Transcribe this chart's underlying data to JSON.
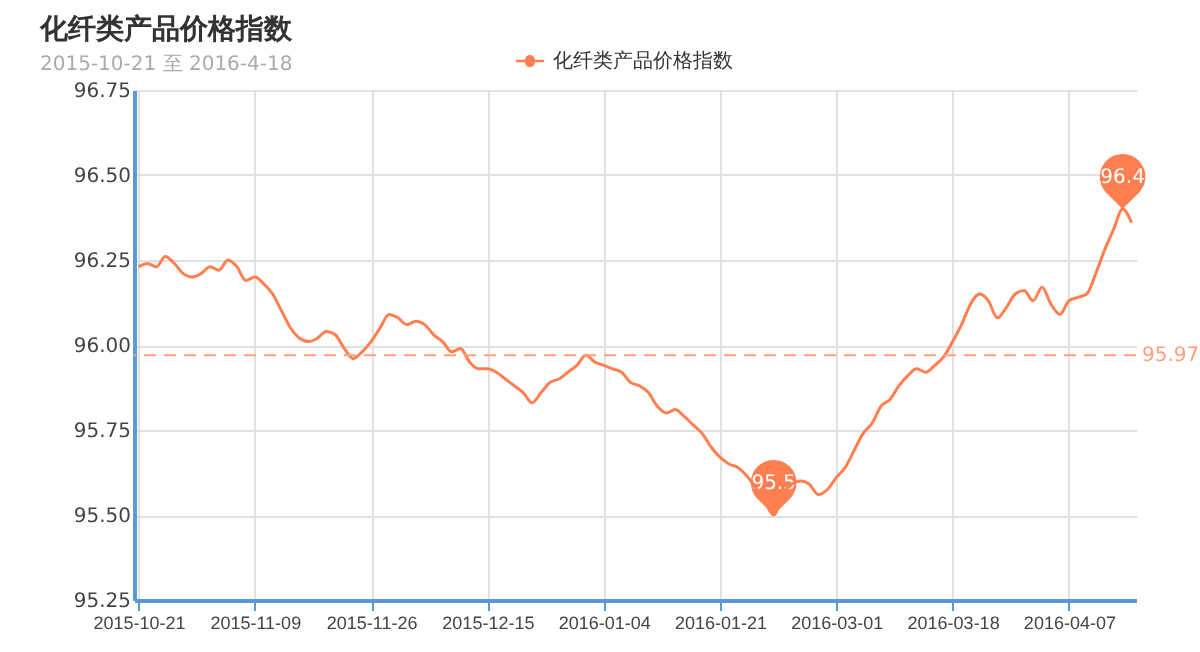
{
  "chart_data": {
    "type": "line",
    "title": "化纤类产品价格指数",
    "subtitle": "2015-10-21 至 2016-4-18",
    "categories": [
      "2015-10-21",
      null,
      null,
      null,
      null,
      null,
      null,
      null,
      null,
      null,
      null,
      null,
      null,
      "2015-11-09",
      null,
      null,
      null,
      null,
      null,
      null,
      null,
      null,
      null,
      null,
      null,
      null,
      "2015-11-26",
      null,
      null,
      null,
      null,
      null,
      null,
      null,
      null,
      null,
      null,
      null,
      null,
      "2015-12-15",
      null,
      null,
      null,
      null,
      null,
      null,
      null,
      null,
      null,
      null,
      null,
      null,
      "2016-01-04",
      null,
      null,
      null,
      null,
      null,
      null,
      null,
      null,
      null,
      null,
      null,
      null,
      "2016-01-21",
      null,
      null,
      null,
      null,
      null,
      null,
      null,
      null,
      null,
      null,
      null,
      null,
      "2016-03-01",
      null,
      null,
      null,
      null,
      null,
      null,
      null,
      null,
      null,
      null,
      null,
      null,
      "2016-03-18",
      null,
      null,
      null,
      null,
      null,
      null,
      null,
      null,
      null,
      null,
      null,
      null,
      "2016-04-07",
      null,
      null,
      null,
      null,
      null,
      null,
      null
    ],
    "series": [
      {
        "name": "化纤类产品价格指数",
        "color": "#ff7f50",
        "values": [
          96.23,
          96.24,
          96.23,
          96.26,
          96.24,
          96.21,
          96.2,
          96.21,
          96.23,
          96.22,
          96.25,
          96.23,
          96.19,
          96.2,
          96.18,
          96.15,
          96.1,
          96.05,
          96.02,
          96.01,
          96.02,
          96.04,
          96.03,
          95.99,
          95.96,
          95.98,
          96.01,
          96.05,
          96.09,
          96.08,
          96.06,
          96.07,
          96.06,
          96.03,
          96.01,
          95.98,
          95.99,
          95.95,
          95.93,
          95.93,
          95.92,
          95.9,
          95.88,
          95.86,
          95.83,
          95.86,
          95.89,
          95.9,
          95.92,
          95.94,
          95.97,
          95.95,
          95.94,
          95.93,
          95.92,
          95.89,
          95.88,
          95.86,
          95.82,
          95.8,
          95.81,
          95.79,
          95.765,
          95.74,
          95.7,
          95.67,
          95.65,
          95.64,
          95.615,
          95.58,
          95.54,
          95.5,
          95.56,
          95.59,
          95.6,
          95.59,
          95.56,
          95.575,
          95.61,
          95.64,
          95.69,
          95.74,
          95.77,
          95.82,
          95.84,
          95.88,
          95.91,
          95.93,
          95.92,
          95.94,
          95.965,
          96.01,
          96.06,
          96.12,
          96.15,
          96.13,
          96.08,
          96.11,
          96.15,
          96.16,
          96.13,
          96.17,
          96.12,
          96.09,
          96.13,
          96.14,
          96.15,
          96.21,
          96.28,
          96.34,
          96.4,
          96.36
        ]
      }
    ],
    "ylim": [
      95.25,
      96.75
    ],
    "yticks": [
      95.25,
      {
        "value": 95.5,
        "label": "95.50"
      },
      95.75,
      {
        "value": 96,
        "label": "96.00"
      },
      96.25,
      {
        "value": 96.5,
        "label": "96.50"
      },
      96.75
    ],
    "ref_lines": [
      {
        "axis": "y",
        "value": 95.97,
        "label": "95.97",
        "color": "#ffa07a",
        "line_style": "dashed"
      }
    ],
    "annotations": [
      {
        "text": "96.4",
        "y": 96.4
      },
      {
        "text": "95.5",
        "y": 95.5
      }
    ],
    "grid": true,
    "legend": "top"
  }
}
